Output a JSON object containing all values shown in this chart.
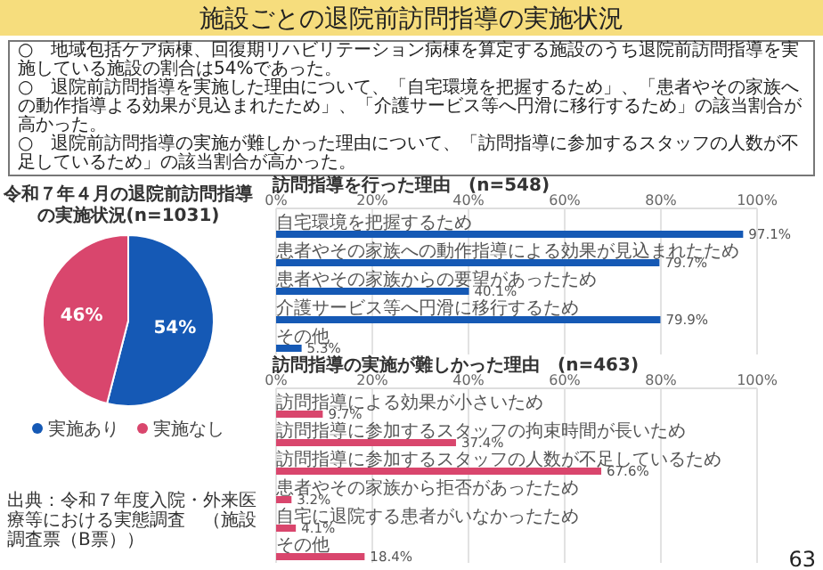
{
  "chart_data": [
    {
      "type": "other",
      "title": "施設ごとの退院前訪問指導の実施状況",
      "annotations": [
        "○　地域包括ケア病棟、回復期リハビリテーション病棟を算定する施設のうち退院前訪問指導を実施している施設の割合は54%であった。",
        "○　退院前訪問指導を実施した理由について、「自宅環境を把握するため」、「患者やその家族への動作指導よる効果が見込まれたため」、「介護サービス等へ円滑に移行するため」の該当割合が高かった。",
        "○　退院前訪問指導の実施が難しかった理由について、「訪問指導に参加するスタッフの人数が不足しているため」の該当割合が高かった。",
        "出典：令和７年度入院・外来医療等における実態調査　（施設調査票（B票））",
        "63"
      ]
    },
    {
      "type": "pie",
      "title": "令和７年４月の退院前訪問指導の実施状況(n=1031)",
      "categories": [
        "実施あり",
        "実施なし"
      ],
      "values": [
        54,
        46
      ],
      "value_labels": [
        "54%",
        "46%"
      ],
      "colors": [
        "#1559b5",
        "#d9466d"
      ],
      "legend": "bottom"
    },
    {
      "type": "bar",
      "orientation": "horizontal",
      "title": "訪問指導を行った理由　(n=548)",
      "categories": [
        "自宅環境を把握するため",
        "患者やその家族への動作指導による効果が見込まれたため",
        "患者やその家族からの要望があったため",
        "介護サービス等へ円滑に移行するため",
        "その他"
      ],
      "values": [
        97.1,
        79.7,
        40.1,
        79.9,
        5.3
      ],
      "value_labels": [
        "97.1%",
        "79.7%",
        "40.1%",
        "79.9%",
        "5.3%"
      ],
      "color": "#1559b5",
      "xlim": [
        0,
        100
      ],
      "xticks": [
        {
          "value": 0,
          "label": "0%"
        },
        {
          "value": 20,
          "label": "20%"
        },
        {
          "value": 40,
          "label": "40%"
        },
        {
          "value": 60,
          "label": "60%"
        },
        {
          "value": 80,
          "label": "80%"
        },
        {
          "value": 100,
          "label": "100%"
        }
      ],
      "grid": "x"
    },
    {
      "type": "bar",
      "orientation": "horizontal",
      "title": "訪問指導の実施が難しかった理由　(n=463)",
      "categories": [
        "訪問指導による効果が小さいため",
        "訪問指導に参加するスタッフの拘束時間が長いため",
        "訪問指導に参加するスタッフの人数が不足しているため",
        "患者やその家族から拒否があったため",
        "自宅に退院する患者がいなかったため",
        "その他"
      ],
      "values": [
        9.7,
        37.4,
        67.6,
        3.2,
        4.1,
        18.4
      ],
      "value_labels": [
        "9.7%",
        "37.4%",
        "67.6%",
        "3.2%",
        "4.1%",
        "18.4%"
      ],
      "color": "#d9466d",
      "xlim": [
        0,
        100
      ],
      "xticks": [
        {
          "value": 0,
          "label": "0%"
        },
        {
          "value": 20,
          "label": "20%"
        },
        {
          "value": 40,
          "label": "40%"
        },
        {
          "value": 60,
          "label": "60%"
        },
        {
          "value": 80,
          "label": "80%"
        },
        {
          "value": 100,
          "label": "100%"
        }
      ],
      "grid": "x"
    }
  ]
}
